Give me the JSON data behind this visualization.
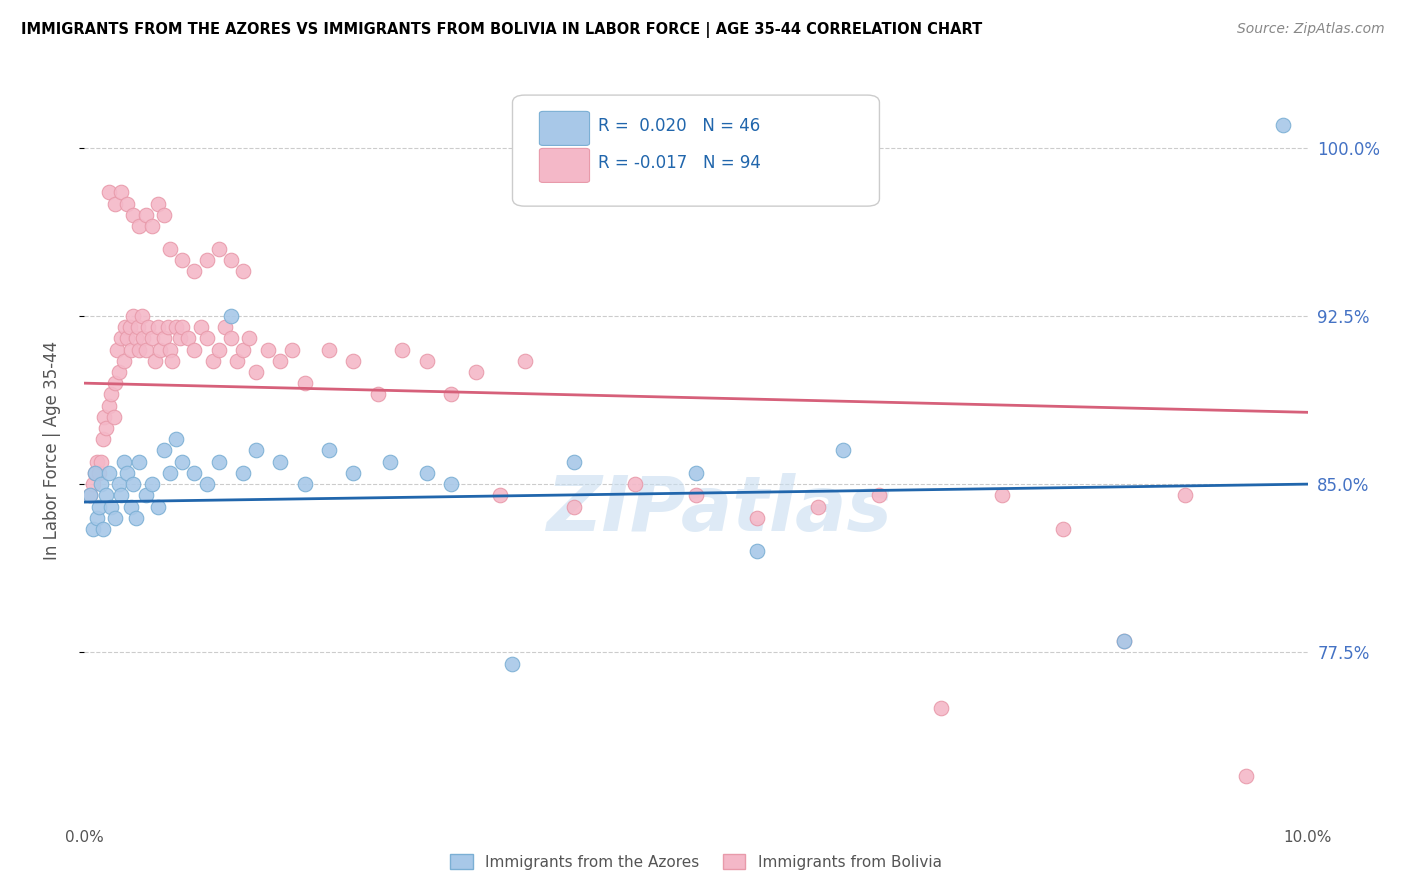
{
  "title": "IMMIGRANTS FROM THE AZORES VS IMMIGRANTS FROM BOLIVIA IN LABOR FORCE | AGE 35-44 CORRELATION CHART",
  "source": "Source: ZipAtlas.com",
  "ylabel": "In Labor Force | Age 35-44",
  "xlim": [
    0.0,
    10.0
  ],
  "ylim": [
    70.0,
    103.0
  ],
  "yticks": [
    77.5,
    85.0,
    92.5,
    100.0
  ],
  "xticks": [
    0.0,
    2.5,
    5.0,
    7.5,
    10.0
  ],
  "xtick_labels": [
    "0.0%",
    "",
    "",
    "",
    "10.0%"
  ],
  "ytick_labels": [
    "77.5%",
    "85.0%",
    "92.5%",
    "100.0%"
  ],
  "blue_color": "#a8c8e8",
  "blue_edge_color": "#7bafd4",
  "pink_color": "#f4b8c8",
  "pink_edge_color": "#e89aaa",
  "blue_line_color": "#2166ac",
  "pink_line_color": "#d6607a",
  "r_blue": 0.02,
  "n_blue": 46,
  "r_pink": -0.017,
  "n_pink": 94,
  "legend_label_blue": "Immigrants from the Azores",
  "legend_label_pink": "Immigrants from Bolivia",
  "watermark": "ZIPatlas",
  "blue_x": [
    0.05,
    0.07,
    0.09,
    0.1,
    0.12,
    0.14,
    0.15,
    0.18,
    0.2,
    0.22,
    0.25,
    0.28,
    0.3,
    0.32,
    0.35,
    0.38,
    0.4,
    0.42,
    0.45,
    0.5,
    0.55,
    0.6,
    0.65,
    0.7,
    0.75,
    0.8,
    0.9,
    1.0,
    1.1,
    1.2,
    1.3,
    1.4,
    1.6,
    1.8,
    2.0,
    2.2,
    2.5,
    2.8,
    3.0,
    3.5,
    4.0,
    5.0,
    5.5,
    6.2,
    8.5,
    9.8
  ],
  "blue_y": [
    84.5,
    83.0,
    85.5,
    83.5,
    84.0,
    85.0,
    83.0,
    84.5,
    85.5,
    84.0,
    83.5,
    85.0,
    84.5,
    86.0,
    85.5,
    84.0,
    85.0,
    83.5,
    86.0,
    84.5,
    85.0,
    84.0,
    86.5,
    85.5,
    87.0,
    86.0,
    85.5,
    85.0,
    86.0,
    92.5,
    85.5,
    86.5,
    86.0,
    85.0,
    86.5,
    85.5,
    86.0,
    85.5,
    85.0,
    77.0,
    86.0,
    85.5,
    82.0,
    86.5,
    78.0,
    101.0
  ],
  "pink_x": [
    0.05,
    0.07,
    0.09,
    0.1,
    0.12,
    0.14,
    0.15,
    0.16,
    0.18,
    0.2,
    0.22,
    0.24,
    0.25,
    0.27,
    0.28,
    0.3,
    0.32,
    0.33,
    0.35,
    0.37,
    0.38,
    0.4,
    0.42,
    0.44,
    0.45,
    0.47,
    0.48,
    0.5,
    0.52,
    0.55,
    0.58,
    0.6,
    0.62,
    0.65,
    0.68,
    0.7,
    0.72,
    0.75,
    0.78,
    0.8,
    0.85,
    0.9,
    0.95,
    1.0,
    1.05,
    1.1,
    1.15,
    1.2,
    1.25,
    1.3,
    1.35,
    1.4,
    1.5,
    1.6,
    1.7,
    1.8,
    2.0,
    2.2,
    2.4,
    2.6,
    2.8,
    3.0,
    3.2,
    3.4,
    3.6,
    4.0,
    4.5,
    5.0,
    5.5,
    6.0,
    6.5,
    7.0,
    7.5,
    8.0,
    8.5,
    9.0,
    9.5,
    0.2,
    0.25,
    0.3,
    0.35,
    0.4,
    0.45,
    0.5,
    0.55,
    0.6,
    0.65,
    0.7,
    0.8,
    0.9,
    1.0,
    1.1,
    1.2,
    1.3
  ],
  "pink_y": [
    84.5,
    85.0,
    85.5,
    86.0,
    85.5,
    86.0,
    87.0,
    88.0,
    87.5,
    88.5,
    89.0,
    88.0,
    89.5,
    91.0,
    90.0,
    91.5,
    90.5,
    92.0,
    91.5,
    92.0,
    91.0,
    92.5,
    91.5,
    92.0,
    91.0,
    92.5,
    91.5,
    91.0,
    92.0,
    91.5,
    90.5,
    92.0,
    91.0,
    91.5,
    92.0,
    91.0,
    90.5,
    92.0,
    91.5,
    92.0,
    91.5,
    91.0,
    92.0,
    91.5,
    90.5,
    91.0,
    92.0,
    91.5,
    90.5,
    91.0,
    91.5,
    90.0,
    91.0,
    90.5,
    91.0,
    89.5,
    91.0,
    90.5,
    89.0,
    91.0,
    90.5,
    89.0,
    90.0,
    84.5,
    90.5,
    84.0,
    85.0,
    84.5,
    83.5,
    84.0,
    84.5,
    75.0,
    84.5,
    83.0,
    78.0,
    84.5,
    72.0,
    98.0,
    97.5,
    98.0,
    97.5,
    97.0,
    96.5,
    97.0,
    96.5,
    97.5,
    97.0,
    95.5,
    95.0,
    94.5,
    95.0,
    95.5,
    95.0,
    94.5
  ]
}
